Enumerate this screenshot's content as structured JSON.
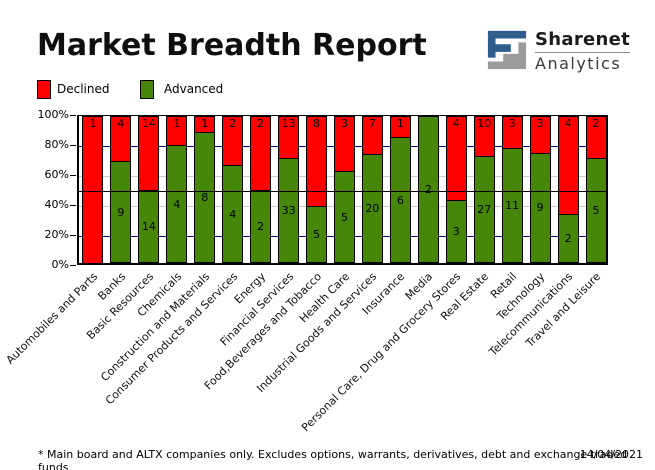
{
  "title": "Market Breadth Report",
  "logo": {
    "brand": "Sharenet",
    "division": "Analytics",
    "colors": {
      "blue": "#2F5D8C",
      "gray": "#9B9B9B"
    }
  },
  "footer": {
    "note": "* Main board and ALTX companies only. Excludes options, warrants, derivatives, debt and exchange traded funds",
    "date": "14/04/2021"
  },
  "chart_data": {
    "type": "bar",
    "subtype": "100pct-stacked-vertical",
    "title": "Market Breadth Report",
    "xlabel": "",
    "ylabel": "",
    "ylim": [
      0,
      100
    ],
    "y_ticks": [
      "0%",
      "20%",
      "40%",
      "60%",
      "80%",
      "100%"
    ],
    "legend_position": "top-left",
    "grid": "on",
    "categories": [
      "Automobiles and Parts",
      "Banks",
      "Basic Resources",
      "Chemicals",
      "Construction and Materials",
      "Consumer Products and Services",
      "Energy",
      "Financial Services",
      "Food,Beverages and Tobacco",
      "Health Care",
      "Industrial Goods and Services",
      "Insurance",
      "Media",
      "Personal Care, Drug and Grocery Stores",
      "Real Estate",
      "Retail",
      "Technology",
      "Telecommunications",
      "Travel and Leisure"
    ],
    "series": [
      {
        "name": "Declined",
        "color": "#FF0000",
        "values": [
          1,
          4,
          14,
          1,
          1,
          2,
          2,
          13,
          8,
          3,
          7,
          1,
          0,
          4,
          10,
          3,
          3,
          4,
          2
        ]
      },
      {
        "name": "Advanced",
        "color": "#46870A",
        "values": [
          0,
          9,
          14,
          4,
          8,
          4,
          2,
          33,
          5,
          5,
          20,
          6,
          2,
          3,
          27,
          11,
          9,
          2,
          5
        ]
      }
    ],
    "gridlines": [
      {
        "pct": 20,
        "color": "#000080",
        "above_bars": false
      },
      {
        "pct": 40,
        "color": "#C9C9C9",
        "above_bars": false
      },
      {
        "pct": 60,
        "color": "#C9C9C9",
        "above_bars": false
      },
      {
        "pct": 80,
        "color": "#000080",
        "above_bars": false
      },
      {
        "pct": 50,
        "color": "#000000",
        "above_bars": true
      }
    ]
  }
}
